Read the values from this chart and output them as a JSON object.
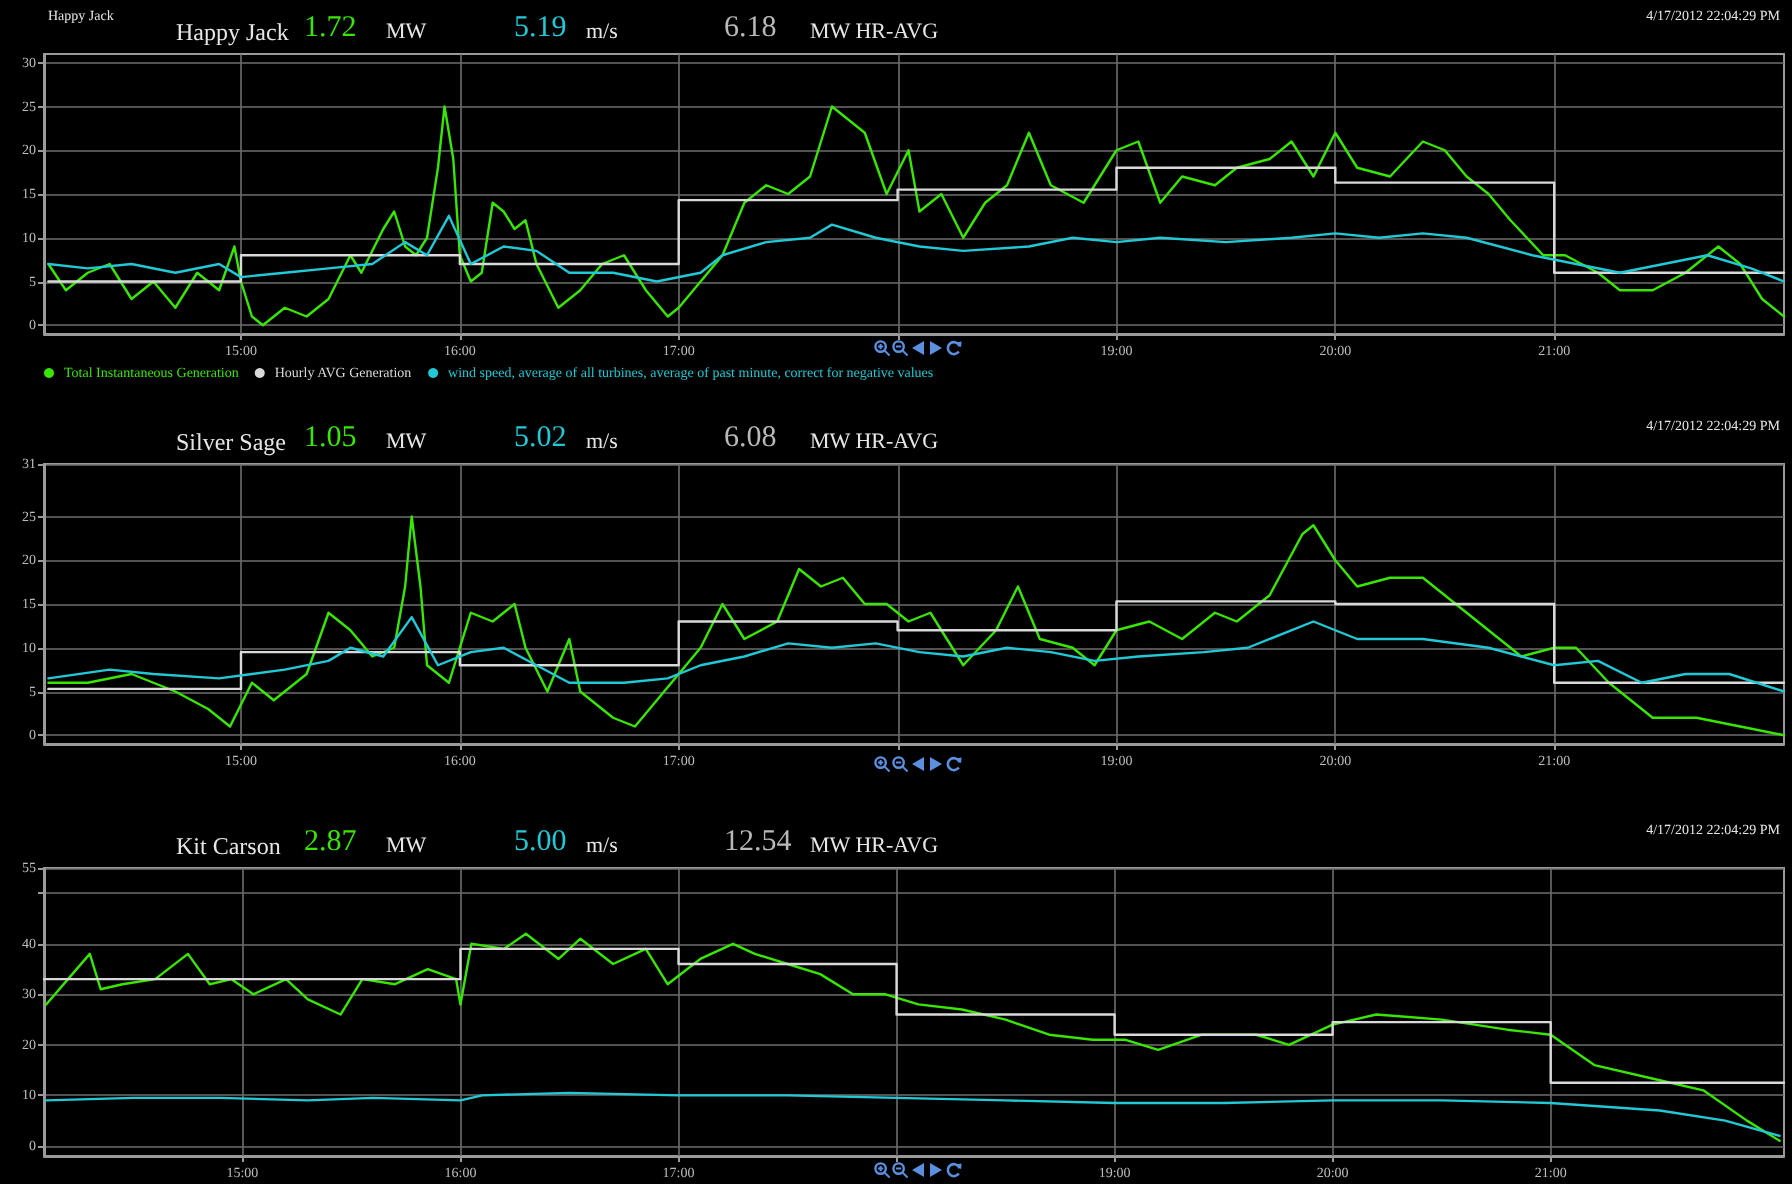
{
  "chart_data": [
    {
      "type": "line",
      "title": "Happy Jack",
      "annotations": [
        "Happy Jack",
        "1.72",
        "MW",
        "5.19",
        "m/s",
        "6.18",
        "MW HR-AVG",
        "4/17/2012 22:04:29 PM"
      ],
      "xlim": [
        14.1,
        22.05
      ],
      "xticks": [
        {
          "value": 15,
          "label": "15:00"
        },
        {
          "value": 16,
          "label": "16:00"
        },
        {
          "value": 17,
          "label": "17:00"
        },
        {
          "value": 18,
          "label": null
        },
        {
          "value": 19,
          "label": "19:00"
        },
        {
          "value": 20,
          "label": "20:00"
        },
        {
          "value": 21,
          "label": "21:00"
        }
      ],
      "ylim": [
        -1,
        31
      ],
      "yticks": [
        0,
        5,
        10,
        15,
        20,
        25,
        30
      ],
      "grid": true,
      "legend": "bottom left",
      "series": [
        {
          "name": "Total Instantaneous Generation",
          "type": "line",
          "color": "#39e600",
          "x": [
            14.12,
            14.2,
            14.3,
            14.4,
            14.5,
            14.6,
            14.7,
            14.8,
            14.9,
            14.97,
            15.0,
            15.05,
            15.1,
            15.2,
            15.3,
            15.4,
            15.5,
            15.55,
            15.65,
            15.7,
            15.75,
            15.8,
            15.85,
            15.9,
            15.93,
            15.97,
            16.0,
            16.05,
            16.1,
            16.15,
            16.2,
            16.25,
            16.3,
            16.35,
            16.45,
            16.55,
            16.65,
            16.75,
            16.85,
            16.95,
            17.0,
            17.1,
            17.2,
            17.3,
            17.4,
            17.5,
            17.6,
            17.7,
            17.75,
            17.85,
            17.95,
            18.05,
            18.1,
            18.2,
            18.3,
            18.4,
            18.5,
            18.6,
            18.7,
            18.85,
            19.0,
            19.1,
            19.2,
            19.3,
            19.45,
            19.55,
            19.7,
            19.8,
            19.9,
            20.0,
            20.1,
            20.25,
            20.4,
            20.5,
            20.6,
            20.7,
            20.8,
            20.95,
            21.05,
            21.2,
            21.3,
            21.45,
            21.6,
            21.75,
            21.85,
            21.95,
            22.05
          ],
          "values": [
            7,
            4,
            6,
            7,
            3,
            5,
            2,
            6,
            4,
            9,
            5,
            1,
            0,
            2,
            1,
            3,
            8,
            6,
            11,
            13,
            9,
            8,
            10,
            18,
            25,
            19,
            8,
            5,
            6,
            14,
            13,
            11,
            12,
            7,
            2,
            4,
            7,
            8,
            4,
            1,
            2,
            5,
            8,
            14,
            16,
            15,
            17,
            25,
            24,
            22,
            15,
            20,
            13,
            15,
            10,
            14,
            16,
            22,
            16,
            14,
            20,
            21,
            14,
            17,
            16,
            18,
            19,
            21,
            17,
            22,
            18,
            17,
            21,
            20,
            17,
            15,
            12,
            8,
            8,
            6,
            4,
            4,
            6,
            9,
            7,
            3,
            1
          ]
        },
        {
          "name": "Hourly AVG Generation",
          "type": "step",
          "color": "#d9d9d9",
          "x": [
            14.12,
            15,
            16,
            17,
            18,
            19,
            20,
            21,
            22.05
          ],
          "values": [
            5,
            8,
            7,
            14.3,
            15.5,
            18,
            16.3,
            6,
            6
          ]
        },
        {
          "name": "wind speed, average of all turbines, average of past minute, correct for negative values",
          "type": "line",
          "color": "#21c9d6",
          "x": [
            14.12,
            14.3,
            14.5,
            14.7,
            14.9,
            15.0,
            15.2,
            15.4,
            15.6,
            15.75,
            15.85,
            15.95,
            16.05,
            16.2,
            16.35,
            16.5,
            16.7,
            16.9,
            17.1,
            17.2,
            17.4,
            17.6,
            17.7,
            17.9,
            18.1,
            18.3,
            18.6,
            18.8,
            19.0,
            19.2,
            19.5,
            19.8,
            20.0,
            20.2,
            20.4,
            20.6,
            20.9,
            21.1,
            21.3,
            21.5,
            21.7,
            21.9,
            22.05
          ],
          "values": [
            7,
            6.5,
            7,
            6,
            7,
            5.5,
            6,
            6.5,
            7,
            9.5,
            8,
            12.5,
            7,
            9,
            8.5,
            6,
            6,
            5,
            6,
            8,
            9.5,
            10,
            11.5,
            10,
            9,
            8.5,
            9,
            10,
            9.5,
            10,
            9.5,
            10,
            10.5,
            10,
            10.5,
            10,
            8,
            7,
            6,
            7,
            8,
            6.5,
            5
          ]
        }
      ]
    },
    {
      "type": "line",
      "title": "Silver Sage",
      "annotations": [
        "1.05",
        "MW",
        "5.02",
        "m/s",
        "6.08",
        "MW HR-AVG",
        "4/17/2012 22:04:29 PM"
      ],
      "xlim": [
        14.1,
        22.05
      ],
      "xticks": [
        {
          "value": 15,
          "label": "15:00"
        },
        {
          "value": 16,
          "label": "16:00"
        },
        {
          "value": 17,
          "label": "17:00"
        },
        {
          "value": 18,
          "label": null
        },
        {
          "value": 19,
          "label": "19:00"
        },
        {
          "value": 20,
          "label": "20:00"
        },
        {
          "value": 21,
          "label": "21:00"
        }
      ],
      "ylim": [
        -1,
        31
      ],
      "yticks": [
        0,
        5,
        10,
        15,
        20,
        25,
        31
      ],
      "grid": true,
      "series": [
        {
          "type": "line",
          "color": "#39e600",
          "x": [
            14.12,
            14.3,
            14.5,
            14.7,
            14.85,
            14.95,
            15.05,
            15.15,
            15.3,
            15.4,
            15.5,
            15.6,
            15.7,
            15.75,
            15.78,
            15.82,
            15.85,
            15.95,
            16.05,
            16.15,
            16.25,
            16.3,
            16.4,
            16.5,
            16.55,
            16.7,
            16.8,
            16.9,
            17.0,
            17.1,
            17.2,
            17.3,
            17.45,
            17.55,
            17.65,
            17.75,
            17.85,
            17.95,
            18.05,
            18.15,
            18.3,
            18.45,
            18.55,
            18.65,
            18.8,
            18.9,
            19.0,
            19.15,
            19.3,
            19.45,
            19.55,
            19.7,
            19.85,
            19.9,
            20.0,
            20.1,
            20.25,
            20.4,
            20.55,
            20.7,
            20.85,
            21.0,
            21.1,
            21.25,
            21.45,
            21.65,
            21.85,
            22.05
          ],
          "values": [
            6,
            6,
            7,
            5,
            3,
            1,
            6,
            4,
            7,
            14,
            12,
            9,
            10,
            17,
            25,
            17,
            8,
            6,
            14,
            13,
            15,
            10,
            5,
            11,
            5,
            2,
            1,
            4,
            7,
            10,
            15,
            11,
            13,
            19,
            17,
            18,
            15,
            15,
            13,
            14,
            8,
            12,
            17,
            11,
            10,
            8,
            12,
            13,
            11,
            14,
            13,
            16,
            23,
            24,
            20,
            17,
            18,
            18,
            15,
            12,
            9,
            10,
            10,
            6,
            2,
            2,
            1,
            0
          ]
        },
        {
          "type": "step",
          "color": "#d9d9d9",
          "x": [
            14.12,
            15,
            16,
            17,
            18,
            19,
            20,
            21,
            22.05
          ],
          "values": [
            5.3,
            9.5,
            8,
            13,
            12,
            15.3,
            15,
            6,
            6
          ]
        },
        {
          "type": "line",
          "color": "#21c9d6",
          "x": [
            14.12,
            14.4,
            14.6,
            14.9,
            15.05,
            15.2,
            15.4,
            15.5,
            15.65,
            15.78,
            15.9,
            16.05,
            16.2,
            16.35,
            16.5,
            16.75,
            16.95,
            17.1,
            17.3,
            17.5,
            17.7,
            17.9,
            18.1,
            18.3,
            18.5,
            18.7,
            18.9,
            19.1,
            19.4,
            19.6,
            19.9,
            20.1,
            20.4,
            20.7,
            21.0,
            21.2,
            21.4,
            21.6,
            21.8,
            22.05
          ],
          "values": [
            6.5,
            7.5,
            7,
            6.5,
            7,
            7.5,
            8.5,
            10,
            9,
            13.5,
            8,
            9.5,
            10,
            8,
            6,
            6,
            6.5,
            8,
            9,
            10.5,
            10,
            10.5,
            9.5,
            9,
            10,
            9.5,
            8.5,
            9,
            9.5,
            10,
            13,
            11,
            11,
            10,
            8,
            8.5,
            6,
            7,
            7,
            5
          ]
        }
      ]
    },
    {
      "type": "line",
      "title": "Kit Carson",
      "annotations": [
        "2.87",
        "MW",
        "5.00",
        "m/s",
        "12.54",
        "MW HR-AVG",
        "4/17/2012 22:04:29 PM"
      ],
      "xlim": [
        14.09,
        22.07
      ],
      "xticks": [
        {
          "value": 15,
          "label": "15:00"
        },
        {
          "value": 16,
          "label": "16:00"
        },
        {
          "value": 17,
          "label": "17:00"
        },
        {
          "value": 18,
          "label": null
        },
        {
          "value": 19,
          "label": "19:00"
        },
        {
          "value": 20,
          "label": "20:00"
        },
        {
          "value": 21,
          "label": "21:00"
        }
      ],
      "ylim": [
        -2,
        55
      ],
      "yticks": [
        0,
        10,
        20,
        30,
        40,
        {
          "value": 50,
          "label": null
        },
        55
      ],
      "grid": true,
      "series": [
        {
          "type": "line",
          "color": "#39e600",
          "x": [
            14.1,
            14.2,
            14.3,
            14.35,
            14.45,
            14.6,
            14.75,
            14.85,
            14.95,
            15.05,
            15.2,
            15.3,
            15.45,
            15.55,
            15.7,
            15.85,
            15.98,
            16.0,
            16.05,
            16.2,
            16.3,
            16.45,
            16.55,
            16.7,
            16.85,
            16.95,
            17.1,
            17.25,
            17.35,
            17.5,
            17.65,
            17.8,
            17.95,
            18.1,
            18.3,
            18.5,
            18.7,
            18.9,
            19.05,
            19.2,
            19.4,
            19.65,
            19.8,
            20.0,
            20.2,
            20.5,
            20.8,
            21.0,
            21.2,
            21.5,
            21.7,
            21.9,
            22.05
          ],
          "values": [
            28,
            33,
            38,
            31,
            32,
            33,
            38,
            32,
            33,
            30,
            33,
            29,
            26,
            33,
            32,
            35,
            33,
            28,
            40,
            39,
            42,
            37,
            41,
            36,
            39,
            32,
            37,
            40,
            38,
            36,
            34,
            30,
            30,
            28,
            27,
            25,
            22,
            21,
            21,
            19,
            22,
            22,
            20,
            24,
            26,
            25,
            23,
            22,
            16,
            13,
            11,
            5,
            1
          ]
        },
        {
          "type": "step",
          "color": "#d9d9d9",
          "x": [
            14.09,
            15,
            16,
            17,
            18,
            19,
            20,
            21,
            22.07
          ],
          "values": [
            33,
            33,
            39,
            36,
            26,
            22,
            24.5,
            12.5,
            12.5
          ]
        },
        {
          "type": "line",
          "color": "#21c9d6",
          "x": [
            14.1,
            14.5,
            14.9,
            15.3,
            15.6,
            16.0,
            16.1,
            16.5,
            17.0,
            17.5,
            18.0,
            18.5,
            19.0,
            19.5,
            20.0,
            20.5,
            21.0,
            21.5,
            21.8,
            22.05
          ],
          "values": [
            9,
            9.5,
            9.5,
            9,
            9.5,
            9,
            10,
            10.5,
            10,
            10,
            9.5,
            9,
            8.5,
            8.5,
            9,
            9,
            8.5,
            7,
            5,
            2
          ]
        }
      ]
    }
  ]
}
